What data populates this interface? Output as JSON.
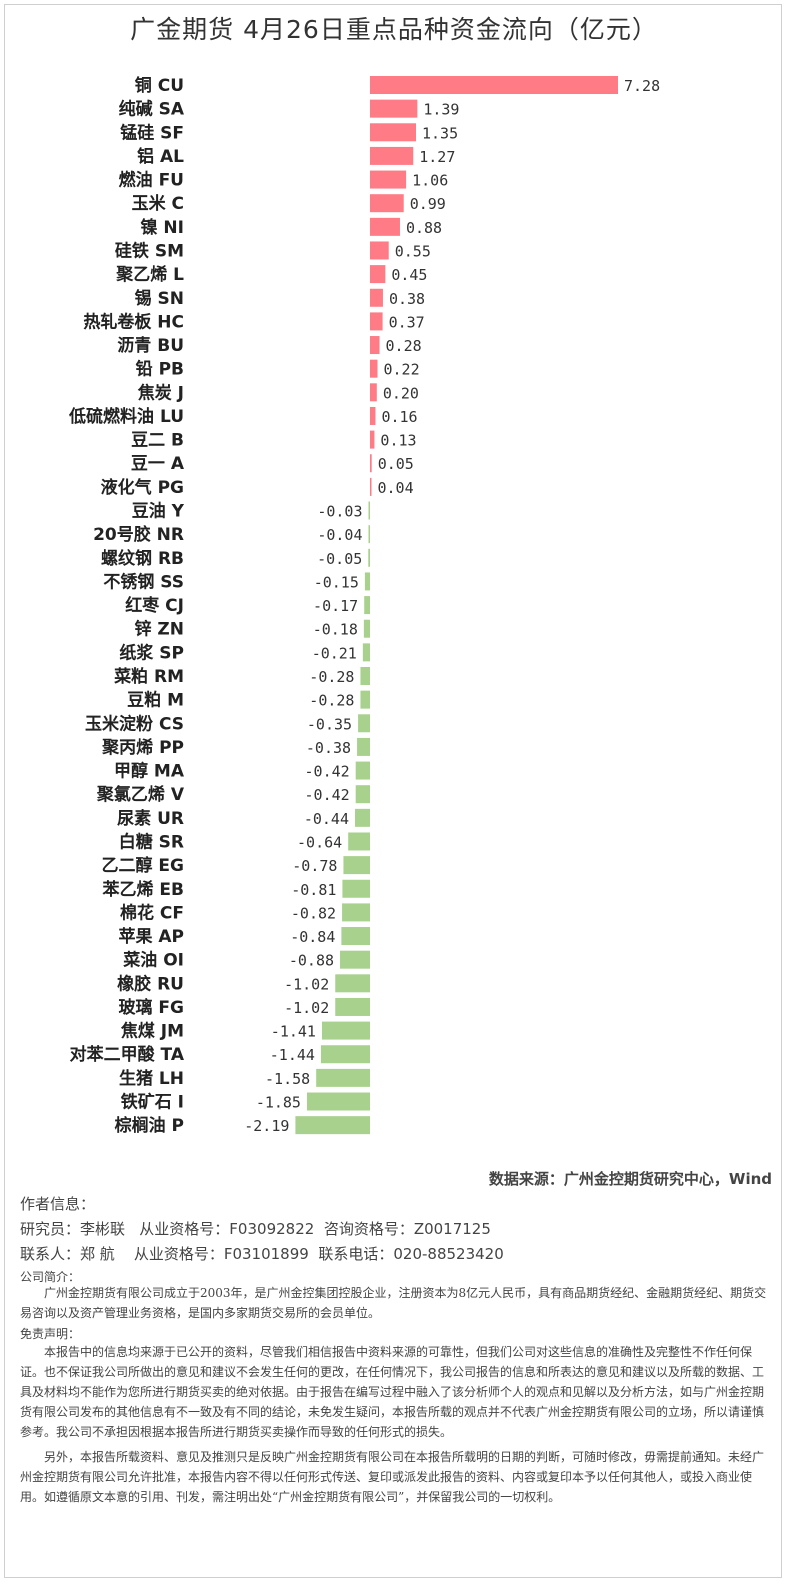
{
  "title": "广金期货 4月26日重点品种资金流向（亿元）",
  "colors": {
    "positive": "#ff7b85",
    "negative": "#a9d18e"
  },
  "chart_data": {
    "type": "bar",
    "orientation": "horizontal",
    "title": "广金期货 4月26日重点品种资金流向（亿元）",
    "categories": [
      "铜 CU",
      "纯碱 SA",
      "锰硅 SF",
      "铝 AL",
      "燃油 FU",
      "玉米 C",
      "镍 NI",
      "硅铁 SM",
      "聚乙烯 L",
      "锡 SN",
      "热轧卷板 HC",
      "沥青 BU",
      "铅 PB",
      "焦炭 J",
      "低硫燃料油 LU",
      "豆二 B",
      "豆一 A",
      "液化气 PG",
      "豆油 Y",
      "20号胶 NR",
      "螺纹钢 RB",
      "不锈钢 SS",
      "红枣 CJ",
      "锌 ZN",
      "纸浆 SP",
      "菜粕 RM",
      "豆粕 M",
      "玉米淀粉 CS",
      "聚丙烯 PP",
      "甲醇 MA",
      "聚氯乙烯 V",
      "尿素 UR",
      "白糖 SR",
      "乙二醇 EG",
      "苯乙烯 EB",
      "棉花 CF",
      "苹果 AP",
      "菜油 OI",
      "橡胶 RU",
      "玻璃 FG",
      "焦煤 JM",
      "对苯二甲酸 TA",
      "生猪 LH",
      "铁矿石 I",
      "棕榈油 P"
    ],
    "values": [
      7.28,
      1.39,
      1.35,
      1.27,
      1.06,
      0.99,
      0.88,
      0.55,
      0.45,
      0.38,
      0.37,
      0.28,
      0.22,
      0.2,
      0.16,
      0.13,
      0.05,
      0.04,
      -0.03,
      -0.04,
      -0.05,
      -0.15,
      -0.17,
      -0.18,
      -0.21,
      -0.28,
      -0.28,
      -0.35,
      -0.38,
      -0.42,
      -0.42,
      -0.44,
      -0.64,
      -0.78,
      -0.81,
      -0.82,
      -0.84,
      -0.88,
      -1.02,
      -1.02,
      -1.41,
      -1.44,
      -1.58,
      -1.85,
      -2.19
    ],
    "value_labels": [
      "7.28",
      "1.39",
      "1.35",
      "1.27",
      "1.06",
      "0.99",
      "0.88",
      "0.55",
      "0.45",
      "0.38",
      "0.37",
      "0.28",
      "0.22",
      "0.20",
      "0.16",
      "0.13",
      "0.05",
      "0.04",
      "-0.03",
      "-0.04",
      "-0.05",
      "-0.15",
      "-0.17",
      "-0.18",
      "-0.21",
      "-0.28",
      "-0.28",
      "-0.35",
      "-0.38",
      "-0.42",
      "-0.42",
      "-0.44",
      "-0.64",
      "-0.78",
      "-0.81",
      "-0.82",
      "-0.84",
      "-0.88",
      "-1.02",
      "-1.02",
      "-1.41",
      "-1.44",
      "-1.58",
      "-1.85",
      "-2.19"
    ],
    "xlim": [
      -2.19,
      7.28
    ],
    "grid": false,
    "legend": "none"
  },
  "source": "数据来源：广州金控期货研究中心，Wind",
  "author": {
    "heading": "作者信息：",
    "line1": "研究员：李彬联   从业资格号：F03092822  咨询资格号：Z0017125",
    "line2": "联系人：郑 航    从业资格号：F03101899  联系电话：020-88523420"
  },
  "company": {
    "heading": "公司简介：",
    "text": "广州金控期货有限公司成立于2003年，是广州金控集团控股企业，注册资本为8亿元人民币，具有商品期货经纪、金融期货经纪、期货交易咨询以及资产管理业务资格，是国内多家期货交易所的会员单位。"
  },
  "disclaimer": {
    "heading": "免责声明：",
    "p1": "本报告中的信息均来源于已公开的资料，尽管我们相信报告中资料来源的可靠性，但我们公司对这些信息的准确性及完整性不作任何保证。也不保证我公司所做出的意见和建议不会发生任何的更改，在任何情况下，我公司报告的信息和所表达的意见和建议以及所载的数据、工具及材料均不能作为您所进行期货买卖的绝对依据。由于报告在编写过程中融入了该分析师个人的观点和见解以及分析方法，如与广州金控期货有限公司发布的其他信息有不一致及有不同的结论，未免发生疑问，本报告所载的观点并不代表广州金控期货有限公司的立场，所以请谨慎参考。我公司不承担因根据本报告所进行期货买卖操作而导致的任何形式的损失。",
    "p2": "另外，本报告所载资料、意见及推测只是反映广州金控期货有限公司在本报告所载明的日期的判断，可随时修改，毋需提前通知。未经广州金控期货有限公司允许批准，本报告内容不得以任何形式传送、复印或派发此报告的资料、内容或复印本予以任何其他人，或投入商业使用。如遵循原文本意的引用、刊发，需注明出处“广州金控期货有限公司”，并保留我公司的一切权利。"
  }
}
